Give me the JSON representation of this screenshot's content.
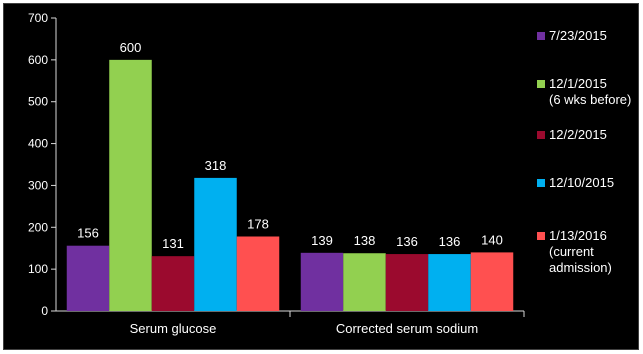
{
  "chart_data": {
    "type": "bar",
    "categories": [
      "Serum glucose",
      "Corrected serum sodium"
    ],
    "series": [
      {
        "name": "7/23/2015",
        "color": "#7030a0",
        "values": [
          156,
          139
        ]
      },
      {
        "name": "12/1/2015 (6 wks before)",
        "color": "#92d050",
        "values": [
          600,
          138
        ]
      },
      {
        "name": "12/2/2015",
        "color": "#9b0a2e",
        "values": [
          131,
          136
        ]
      },
      {
        "name": "12/10/2015",
        "color": "#00b0f0",
        "values": [
          318,
          136
        ]
      },
      {
        "name": "1/13/2016 (current admission)",
        "color": "#ff5050",
        "values": [
          178,
          140
        ]
      }
    ],
    "legend_lines": [
      [
        "7/23/2015"
      ],
      [
        "12/1/2015",
        "(6 wks before)"
      ],
      [
        "12/2/2015"
      ],
      [
        "12/10/2015"
      ],
      [
        "1/13/2016",
        "(current",
        "admission)"
      ]
    ],
    "ylim": [
      0,
      700
    ],
    "yticks": [
      "0",
      "100",
      "200",
      "300",
      "400",
      "500",
      "600",
      "700"
    ],
    "grid": false,
    "legend_position": "right",
    "background": "#000000"
  }
}
